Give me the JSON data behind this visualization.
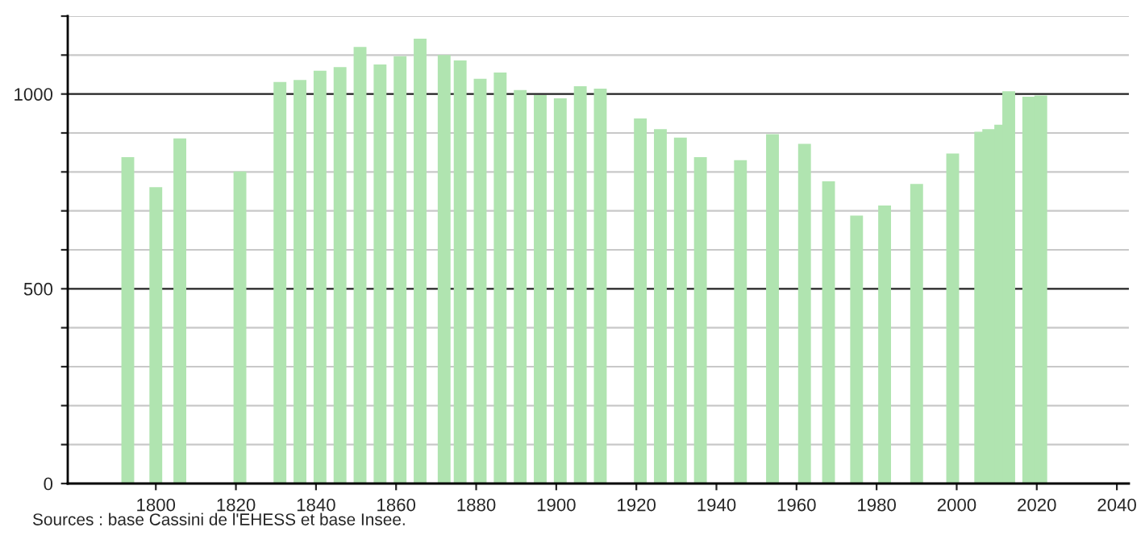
{
  "chart_data": {
    "type": "bar",
    "color": "#b0e4b0",
    "x": [
      1793,
      1800,
      1806,
      1821,
      1831,
      1836,
      1841,
      1846,
      1851,
      1856,
      1861,
      1866,
      1872,
      1876,
      1881,
      1886,
      1891,
      1896,
      1901,
      1906,
      1911,
      1921,
      1926,
      1931,
      1936,
      1946,
      1954,
      1962,
      1968,
      1975,
      1982,
      1990,
      1999,
      2006,
      2008,
      2011,
      2013,
      2018,
      2021
    ],
    "values": [
      838,
      761,
      886,
      801,
      1031,
      1036,
      1060,
      1069,
      1121,
      1076,
      1097,
      1142,
      1100,
      1086,
      1039,
      1055,
      1010,
      997,
      989,
      1020,
      1014,
      937,
      910,
      888,
      838,
      830,
      897,
      872,
      776,
      688,
      714,
      769,
      847,
      903,
      910,
      921,
      1007,
      993,
      996
    ],
    "xlim": [
      1778,
      2043
    ],
    "xticks": [
      1800,
      1820,
      1840,
      1860,
      1880,
      1900,
      1920,
      1940,
      1960,
      1980,
      2000,
      2020,
      2040
    ],
    "ylim": [
      0,
      1200
    ],
    "yticks": [
      0,
      {
        "value": 100,
        "label": null
      },
      {
        "value": 200,
        "label": null
      },
      {
        "value": 300,
        "label": null
      },
      {
        "value": 400,
        "label": null
      },
      500,
      {
        "value": 600,
        "label": null
      },
      {
        "value": 700,
        "label": null
      },
      {
        "value": 800,
        "label": null
      },
      {
        "value": 900,
        "label": null
      },
      1000,
      {
        "value": 1100,
        "label": null
      },
      {
        "value": 1200,
        "label": null
      }
    ],
    "grid": "y",
    "annotations": [
      "Sources : base Cassini de l'EHESS et base Insee."
    ]
  }
}
